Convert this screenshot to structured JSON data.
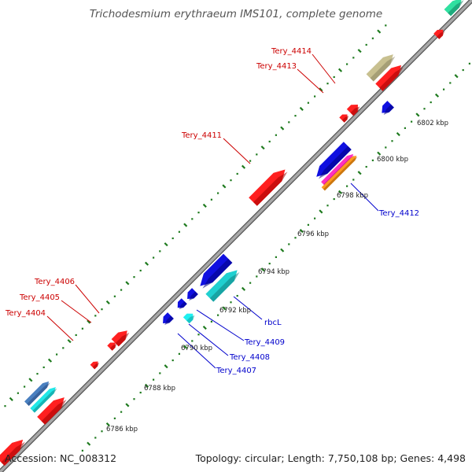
{
  "title": "Trichodesmium erythraeum IMS101, complete genome",
  "footer": {
    "accession": "Accession: NC_008312",
    "summary": "Topology: circular; Length: 7,750,108 bp; Genes: 4,498"
  },
  "colors": {
    "backbone": "#8c8c8c",
    "tick": "#1e7a1e",
    "forward_label": "#cc0000",
    "reverse_label": "#0000cc"
  },
  "scale_labels": [
    "6786 kbp",
    "6788 kbp",
    "6790 kbp",
    "6792 kbp",
    "6794 kbp",
    "6796 kbp",
    "6798 kbp",
    "6800 kbp",
    "6802 kbp"
  ],
  "gene_labels": [
    {
      "text": "Tery_4414",
      "strand": "forward"
    },
    {
      "text": "Tery_4413",
      "strand": "forward"
    },
    {
      "text": "Tery_4411",
      "strand": "forward"
    },
    {
      "text": "Tery_4406",
      "strand": "forward"
    },
    {
      "text": "Tery_4405",
      "strand": "forward"
    },
    {
      "text": "Tery_4404",
      "strand": "forward"
    },
    {
      "text": "Tery_4412",
      "strand": "reverse"
    },
    {
      "text": "rbcL",
      "strand": "reverse"
    },
    {
      "text": "Tery_4409",
      "strand": "reverse"
    },
    {
      "text": "Tery_4408",
      "strand": "reverse"
    },
    {
      "text": "Tery_4407",
      "strand": "reverse"
    }
  ]
}
